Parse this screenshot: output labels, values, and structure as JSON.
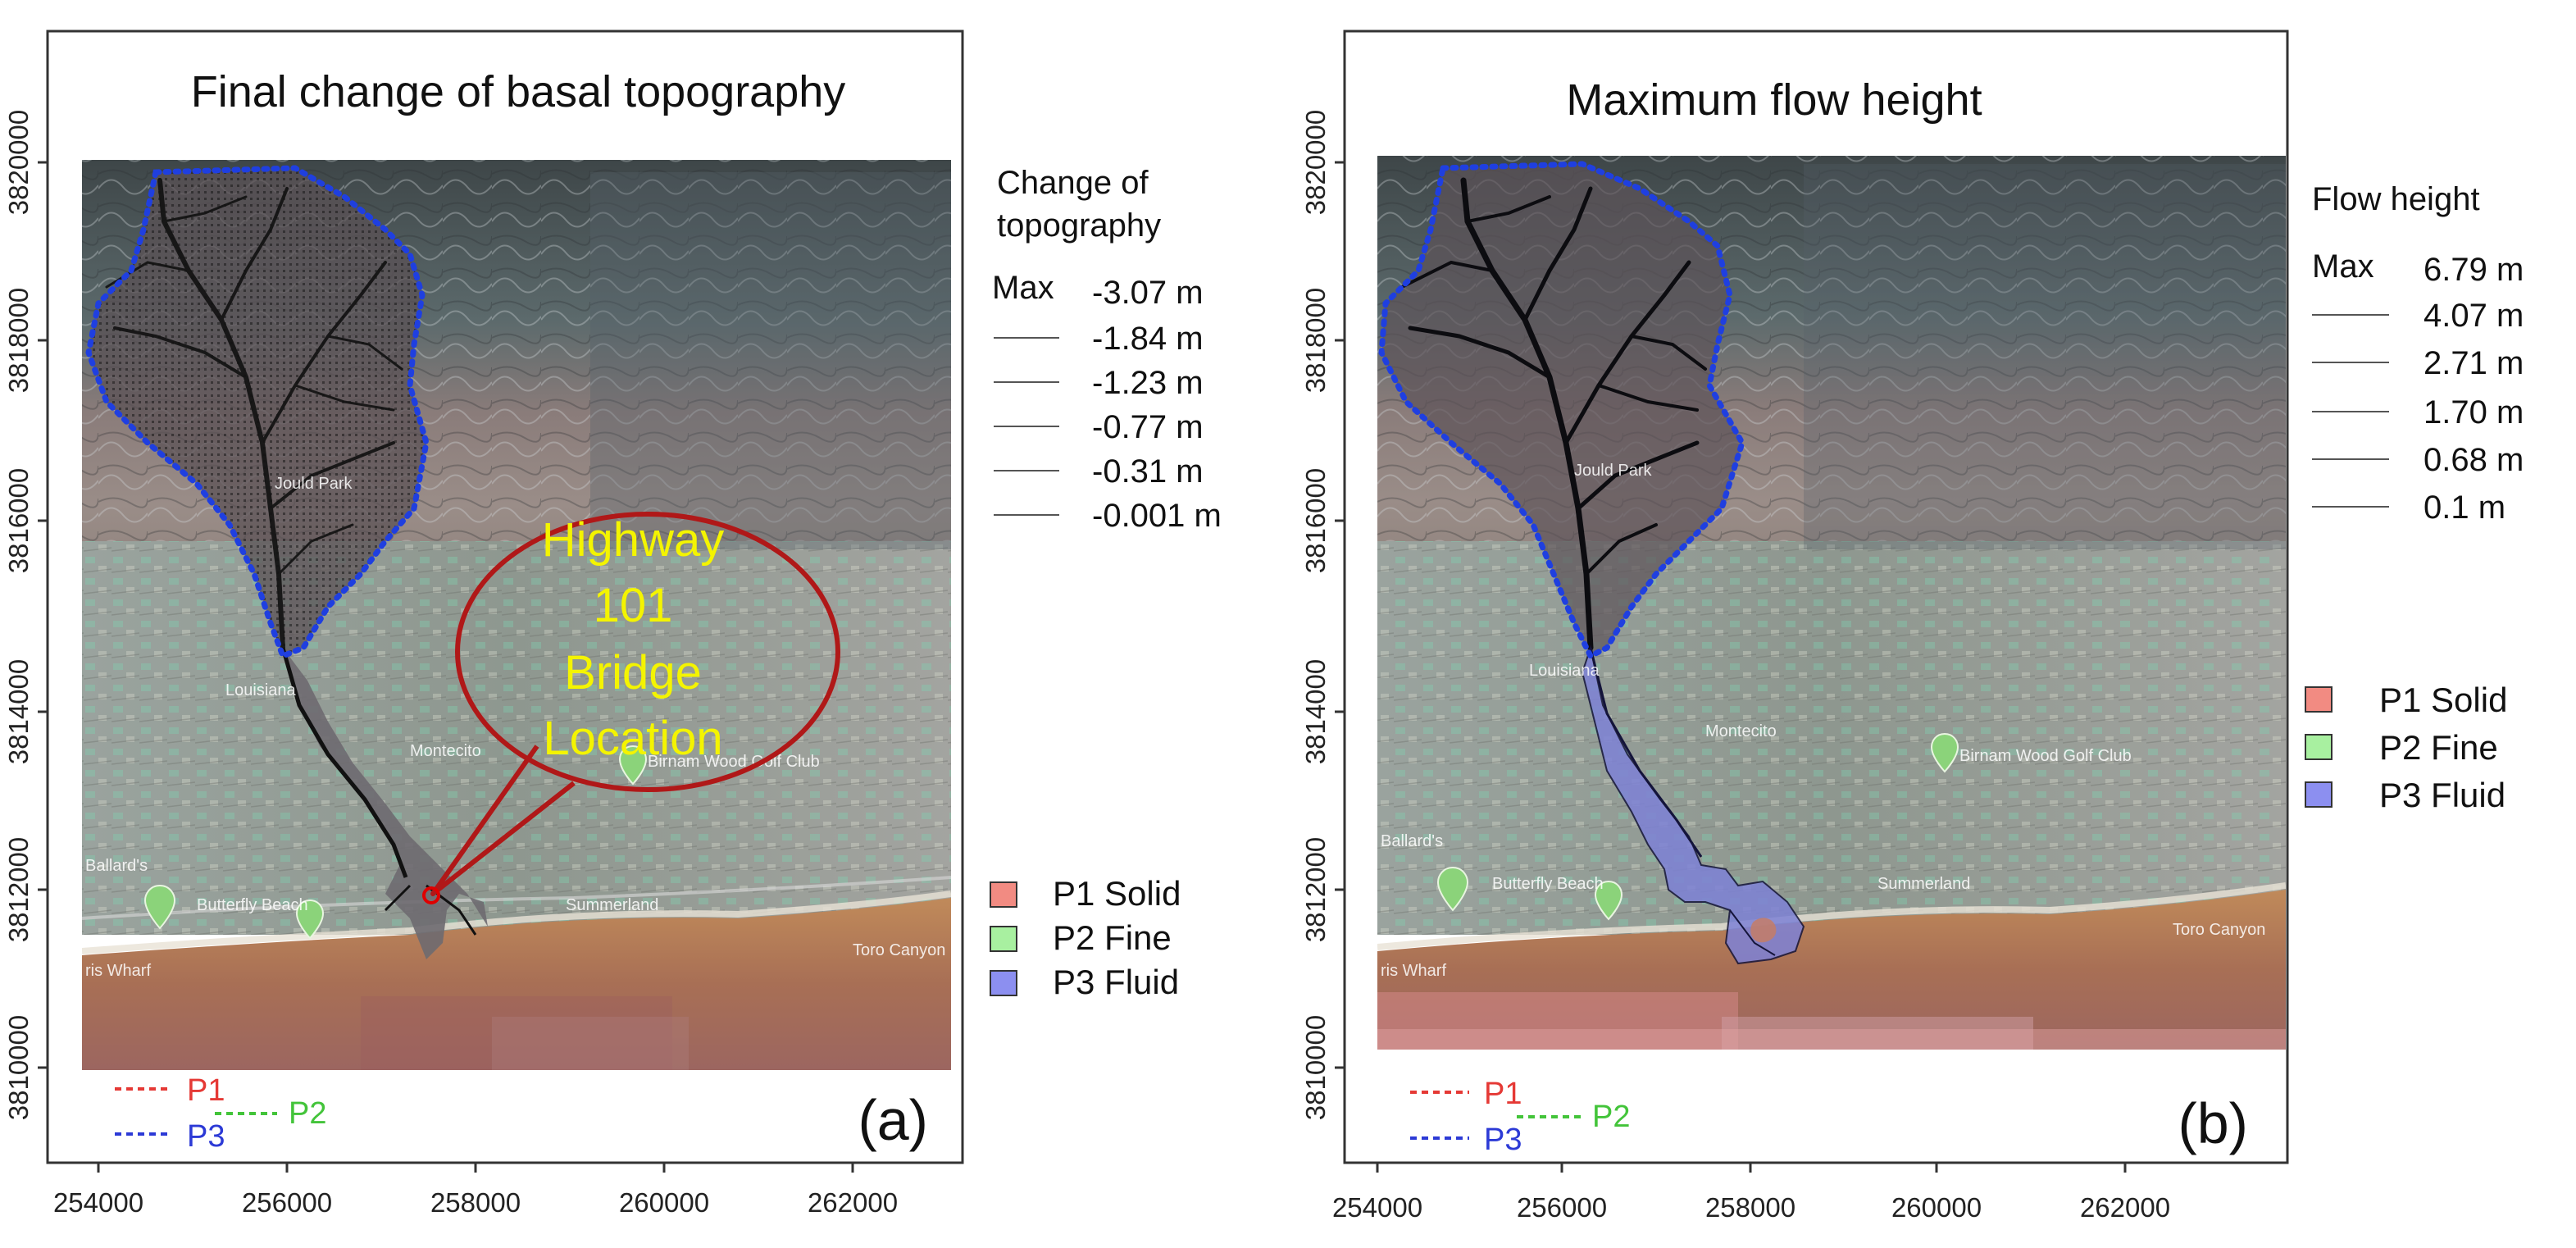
{
  "colors": {
    "p1": "#e53935",
    "p2": "#43c43a",
    "p3": "#2c3ad6",
    "outline_blue": "#1f3fe0",
    "callout_red": "#b01818",
    "callout_text": "#f4f400",
    "flow_fill": "#7e82d6",
    "legend_solid": "#f28b82",
    "legend_fine": "#a8f0a0",
    "legend_fluid": "#8c8ff0"
  },
  "axes": {
    "x_ticks": [
      "254000",
      "256000",
      "258000",
      "260000",
      "262000"
    ],
    "y_ticks": [
      "3810000",
      "3812000",
      "3814000",
      "3816000",
      "3818000",
      "3820000"
    ]
  },
  "map_labels": [
    "Louisiana",
    "Montecito",
    "Birnam Wood Golf Club",
    "Summerland",
    "Toro Canyon",
    "Butterfly Beach",
    "Ballard's",
    "ris Wharf",
    "Jould Park"
  ],
  "profile_labels": {
    "p1": "P1",
    "p2": "P2",
    "p3": "P3"
  },
  "phase_legend": [
    {
      "label": "P1 Solid",
      "color_key": "legend_solid"
    },
    {
      "label": "P2 Fine",
      "color_key": "legend_fine"
    },
    {
      "label": "P3 Fluid",
      "color_key": "legend_fluid"
    }
  ],
  "panel_a": {
    "title": "Final change of basal topography",
    "panel_label": "(a)",
    "legend_title_line1": "Change of",
    "legend_title_line2": "topography",
    "legend_max_label": "Max",
    "legend_values": [
      "-3.07  m",
      "-1.84  m",
      "-1.23  m",
      "-0.77  m",
      "-0.31  m",
      "-0.001  m"
    ],
    "callout": [
      "Highway",
      "101",
      "Bridge",
      "Location"
    ]
  },
  "panel_b": {
    "title": "Maximum flow height",
    "panel_label": "(b)",
    "legend_title": "Flow height",
    "legend_max_label": "Max",
    "legend_values": [
      "6.79  m",
      "4.07  m",
      "2.71  m",
      "1.70  m",
      "0.68  m",
      "0.1  m"
    ]
  }
}
